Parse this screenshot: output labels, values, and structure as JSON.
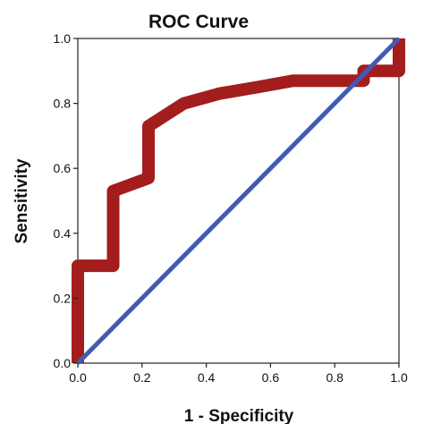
{
  "chart_data": {
    "type": "line",
    "title": "ROC Curve",
    "xlabel": "1 - Specificity",
    "ylabel": "Sensitivity",
    "xlim": [
      0,
      1
    ],
    "ylim": [
      0,
      1
    ],
    "x_ticks": [
      "0.0",
      "0.2",
      "0.4",
      "0.6",
      "0.8",
      "1.0"
    ],
    "y_ticks": [
      "0.0",
      "0.2",
      "0.4",
      "0.6",
      "0.8",
      "1.0"
    ],
    "grid": false,
    "legend": "none",
    "series": [
      {
        "color": "#a31d1d",
        "x": [
          0.0,
          0.0,
          0.11,
          0.11,
          0.22,
          0.22,
          0.33,
          0.44,
          0.56,
          0.67,
          0.78,
          0.89,
          0.89,
          1.0,
          1.0
        ],
        "y": [
          0.0,
          0.3,
          0.3,
          0.53,
          0.57,
          0.73,
          0.8,
          0.83,
          0.85,
          0.87,
          0.87,
          0.87,
          0.9,
          0.9,
          1.0
        ]
      },
      {
        "color": "#3f5bb5",
        "x": [
          0.0,
          1.0
        ],
        "y": [
          0.0,
          1.0
        ]
      }
    ]
  }
}
